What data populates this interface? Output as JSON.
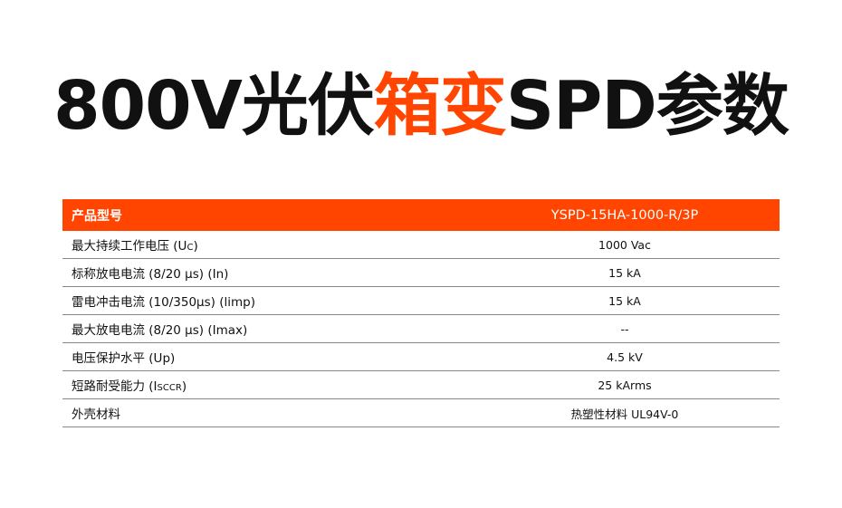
{
  "title": {
    "part1": "800V光伏",
    "highlight": "箱变",
    "part2": "SPD参数"
  },
  "colors": {
    "accent": "#ff4500"
  },
  "table": {
    "header": {
      "label": "产品型号",
      "value": "YSPD-15HA-1000-R/3P"
    },
    "rows": [
      {
        "label": "最大持续工作电压 (U",
        "sub": "C",
        "tail": ")",
        "value": "1000 Vac"
      },
      {
        "label": "标称放电电流 (8/20 µs) (In)",
        "sub": "",
        "tail": "",
        "value": "15 kA"
      },
      {
        "label": "雷电冲击电流 (10/350µs) (limp)",
        "sub": "",
        "tail": "",
        "value": "15 kA"
      },
      {
        "label": "最大放电电流 (8/20 µs) (Imax)",
        "sub": "",
        "tail": "",
        "value": "--"
      },
      {
        "label": "电压保护水平 (Up)",
        "sub": "",
        "tail": "",
        "value": "4.5 kV"
      },
      {
        "label": "短路耐受能力 (I",
        "sub": "SCCR",
        "tail": ")",
        "value": "25 kArms"
      },
      {
        "label": "外壳材料",
        "sub": "",
        "tail": "",
        "value": "热塑性材料  UL94V-0"
      }
    ]
  }
}
